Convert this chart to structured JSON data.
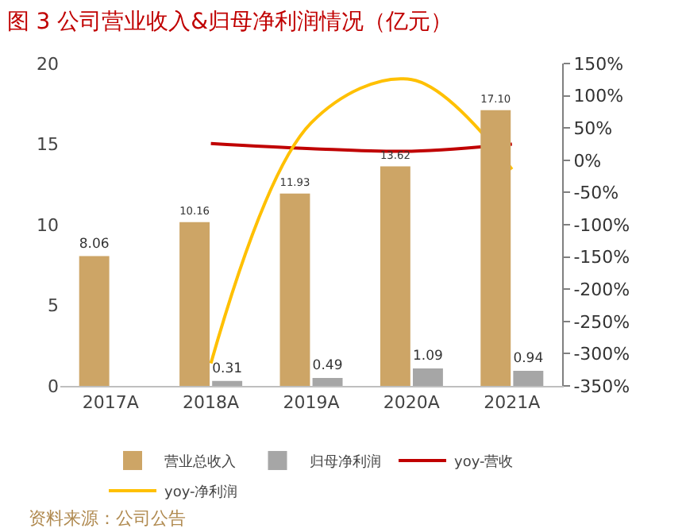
{
  "chart_data": {
    "type": "bar",
    "title": "图 3 公司营业收入&归母净利润情况（亿元）",
    "categories": [
      "2017A",
      "2018A",
      "2019A",
      "2020A",
      "2021A"
    ],
    "series": [
      {
        "name": "营业总收入",
        "color": "#cda566",
        "values": [
          8.06,
          10.16,
          11.93,
          13.62,
          17.1
        ],
        "value_labels": [
          "8.06",
          "10.16",
          "11.93",
          "13.62",
          "17.10"
        ]
      },
      {
        "name": "归母净利润",
        "color": "#a6a6a6",
        "values": [
          null,
          0.31,
          0.49,
          1.09,
          0.94
        ],
        "value_labels": [
          null,
          "0.31",
          "0.49",
          "1.09",
          "0.94"
        ]
      },
      {
        "name": "yoy-营收",
        "type": "line",
        "axis": "y2",
        "color": "#c00000",
        "values": [
          null,
          26,
          18,
          14,
          25
        ]
      },
      {
        "name": "yoy-净利润",
        "type": "line",
        "axis": "y2",
        "color": "#ffc000",
        "values": [
          null,
          -315,
          58,
          125,
          -14
        ]
      }
    ],
    "ylim": [
      0,
      20
    ],
    "yticks": [
      0,
      5,
      10,
      15,
      20
    ],
    "y2lim": [
      -350,
      150
    ],
    "y2ticks": [
      {
        "value": -350,
        "label": "-350%"
      },
      {
        "value": -300,
        "label": "-300%"
      },
      {
        "value": -250,
        "label": "-250%"
      },
      {
        "value": -200,
        "label": "-200%"
      },
      {
        "value": -150,
        "label": "-150%"
      },
      {
        "value": -100,
        "label": "-100%"
      },
      {
        "value": -50,
        "label": "-50%"
      },
      {
        "value": 0,
        "label": "0%"
      },
      {
        "value": 50,
        "label": "50%"
      },
      {
        "value": 100,
        "label": "100%"
      },
      {
        "value": 150,
        "label": "150%"
      }
    ],
    "grid": false,
    "legend": "bottom",
    "annotations": [
      "资料来源：公司公告"
    ]
  }
}
